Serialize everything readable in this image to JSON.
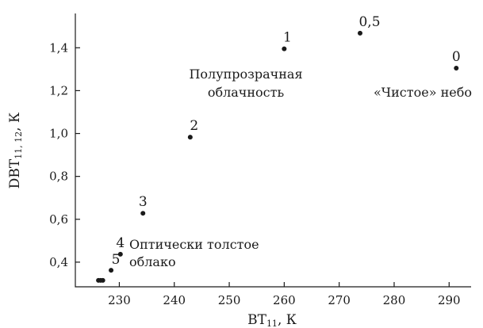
{
  "chart_data": {
    "type": "scatter",
    "xlabel_main": "BT",
    "xlabel_sub": "11",
    "xlabel_unit": ", К",
    "ylabel_main": "DBT",
    "ylabel_sub": "11, 12",
    "ylabel_unit": ", К",
    "xlim": [
      222,
      294
    ],
    "ylim": [
      0.285,
      1.56
    ],
    "x_ticks": [
      230,
      240,
      250,
      260,
      270,
      280,
      290
    ],
    "x_tick_labels": [
      "230",
      "240",
      "250",
      "260",
      "270",
      "280",
      "290"
    ],
    "y_ticks": [
      0.4,
      0.6,
      0.8,
      1.0,
      1.2,
      1.4
    ],
    "y_tick_labels": [
      "0,4",
      "0,6",
      "0,8",
      "1,0",
      "1,2",
      "1,4"
    ],
    "series": [
      {
        "points": [
          {
            "x": 226.2,
            "y": 0.315
          },
          {
            "x": 226.6,
            "y": 0.315
          },
          {
            "x": 227.0,
            "y": 0.315
          },
          {
            "x": 228.5,
            "y": 0.362,
            "label": "5"
          },
          {
            "x": 230.2,
            "y": 0.437,
            "label": "4"
          },
          {
            "x": 234.3,
            "y": 0.628,
            "label": "3"
          },
          {
            "x": 242.9,
            "y": 0.983,
            "label": "2"
          },
          {
            "x": 260.0,
            "y": 1.395,
            "label": "1"
          },
          {
            "x": 273.8,
            "y": 1.468,
            "label": "0,5"
          },
          {
            "x": 291.3,
            "y": 1.305,
            "label": "0"
          }
        ]
      }
    ],
    "annotations": [
      {
        "id": "semi",
        "lines": [
          "Полупрозрачная",
          "облачность"
        ]
      },
      {
        "id": "clear",
        "lines": [
          "«Чистое» небо"
        ]
      },
      {
        "id": "thick",
        "lines": [
          "Оптически толстое",
          "облако"
        ]
      }
    ]
  }
}
